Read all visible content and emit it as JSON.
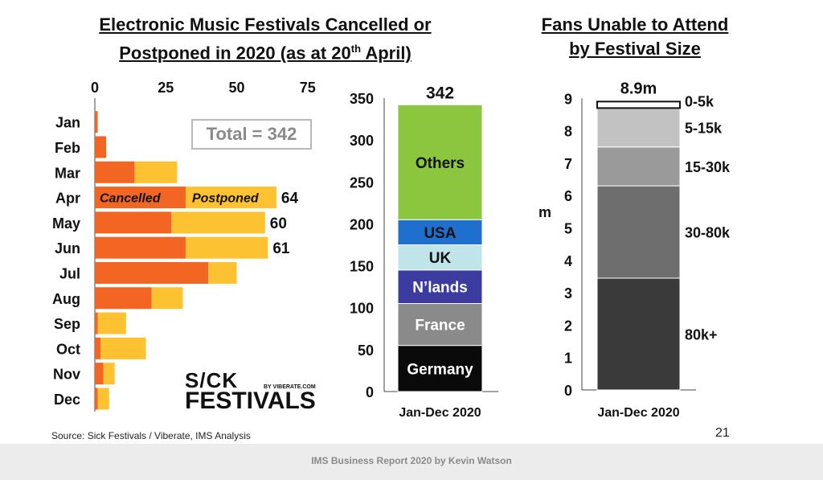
{
  "titles": {
    "left_line1": "Electronic Music Festivals Cancelled or",
    "left_line2": "Postponed in 2020 (as at 20",
    "left_line2_sup": "th",
    "left_line2_end": " April)",
    "right_line1": "Fans Unable to Attend",
    "right_line2": "by Festival Size"
  },
  "total_label": "Total = 342",
  "logo": {
    "line1": "S/CK",
    "line2": "FESTIVALS",
    "by": "BY VIBERATE.COM"
  },
  "source": "Source: Sick Festivals / Viberate, IMS Analysis",
  "page_number": "21",
  "footer": "IMS Business Report 2020 by Kevin Watson",
  "colors": {
    "cancelled": "#f26522",
    "postponed": "#fdc232",
    "others": "#8cc63f",
    "usa": "#1e6fce",
    "uk": "#bfe4ea",
    "nlands": "#3c3ca0",
    "france": "#8a8a8a",
    "germany": "#0a0a0a",
    "s_0_5k": "#ffffff",
    "s_5_15k": "#c2c2c2",
    "s_15_30k": "#9a9a9a",
    "s_30_80k": "#6e6e6e",
    "s_80k": "#3a3a3a"
  },
  "chart_data": [
    {
      "type": "bar",
      "orientation": "horizontal",
      "stacked": true,
      "categories": [
        "Jan",
        "Feb",
        "Mar",
        "Apr",
        "May",
        "Jun",
        "Jul",
        "Aug",
        "Sep",
        "Oct",
        "Nov",
        "Dec"
      ],
      "series": [
        {
          "name": "Cancelled",
          "values": [
            1,
            4,
            14,
            32,
            27,
            32,
            40,
            20,
            1,
            2,
            3,
            1
          ]
        },
        {
          "name": "Postponed",
          "values": [
            0,
            0,
            15,
            32,
            33,
            29,
            10,
            11,
            10,
            16,
            4,
            4
          ]
        }
      ],
      "data_labels": [
        {
          "category": "Apr",
          "text": "64"
        },
        {
          "category": "May",
          "text": "60"
        },
        {
          "category": "Jun",
          "text": "61"
        }
      ],
      "xticks": [
        0,
        25,
        50,
        75
      ],
      "xlim": [
        0,
        75
      ],
      "axis_position": "top",
      "legend": "inline"
    },
    {
      "type": "bar",
      "stacked": true,
      "categories": [
        "Jan-Dec 2020"
      ],
      "series": [
        {
          "name": "Germany",
          "values": [
            55
          ]
        },
        {
          "name": "France",
          "values": [
            50
          ]
        },
        {
          "name": "N’lands",
          "values": [
            40
          ]
        },
        {
          "name": "UK",
          "values": [
            30
          ]
        },
        {
          "name": "USA",
          "values": [
            30
          ]
        },
        {
          "name": "Others",
          "values": [
            137
          ]
        }
      ],
      "total_label": "342",
      "yticks": [
        0,
        50,
        100,
        150,
        200,
        250,
        300,
        350
      ],
      "ylim": [
        0,
        350
      ]
    },
    {
      "type": "bar",
      "stacked": true,
      "categories": [
        "Jan-Dec 2020"
      ],
      "series": [
        {
          "name": "80k+",
          "values": [
            3.45
          ]
        },
        {
          "name": "30-80k",
          "values": [
            2.85
          ]
        },
        {
          "name": "15-30k",
          "values": [
            1.2
          ]
        },
        {
          "name": "5-15k",
          "values": [
            1.2
          ]
        },
        {
          "name": "0-5k",
          "values": [
            0.2
          ]
        }
      ],
      "total_label": "8.9m",
      "ylabel": "m",
      "yticks": [
        0,
        1,
        2,
        3,
        4,
        5,
        6,
        7,
        8,
        9
      ],
      "ylim": [
        0,
        9
      ]
    }
  ]
}
